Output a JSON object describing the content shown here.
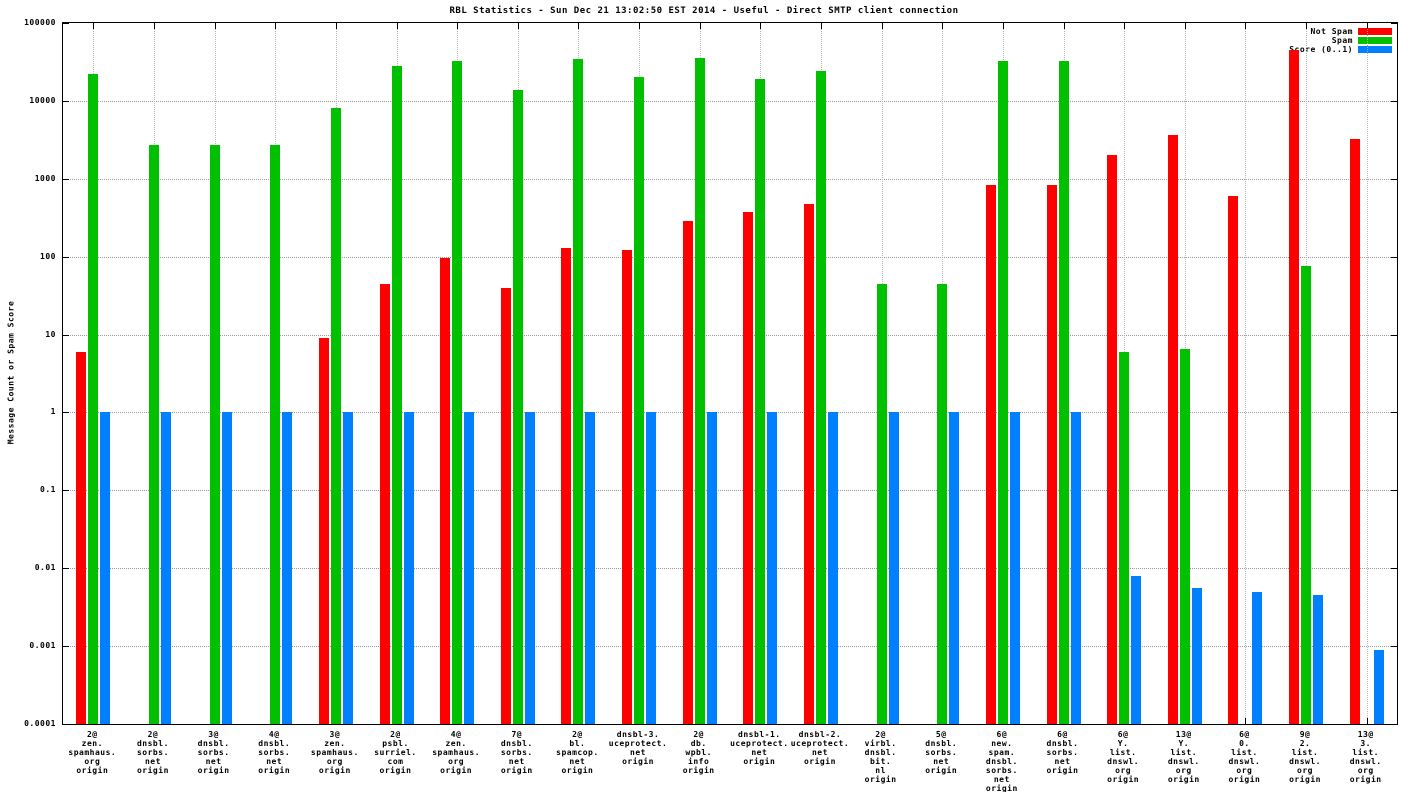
{
  "chart_data": {
    "type": "bar",
    "title": "RBL Statistics - Sun Dec 21 13:02:50 EST 2014 - Useful - Direct SMTP client connection",
    "ylabel": "Message Count or Spam Score",
    "scale": "log",
    "grid": true,
    "legend_position": "top-right",
    "ylim": [
      0.0001,
      100000
    ],
    "yticks": [
      "100000",
      "10000",
      "1000",
      "100",
      "10",
      "1",
      "0.1",
      "0.01",
      "0.001",
      "0.0001"
    ],
    "categories": [
      [
        "2@",
        "zen.",
        "spamhaus.",
        "org",
        "origin"
      ],
      [
        "2@",
        "dnsbl.",
        "sorbs.",
        "net",
        "origin"
      ],
      [
        "3@",
        "dnsbl.",
        "sorbs.",
        "net",
        "origin"
      ],
      [
        "4@",
        "dnsbl.",
        "sorbs.",
        "net",
        "origin"
      ],
      [
        "3@",
        "zen.",
        "spamhaus.",
        "org",
        "origin"
      ],
      [
        "2@",
        "psbl.",
        "surriel.",
        "com",
        "origin"
      ],
      [
        "4@",
        "zen.",
        "spamhaus.",
        "org",
        "origin"
      ],
      [
        "7@",
        "dnsbl.",
        "sorbs.",
        "net",
        "origin"
      ],
      [
        "2@",
        "bl.",
        "spamcop.",
        "net",
        "origin"
      ],
      [
        "dnsbl-3.",
        "uceprotect.",
        "net",
        "origin"
      ],
      [
        "2@",
        "db.",
        "wpbl.",
        "info",
        "origin"
      ],
      [
        "dnsbl-1.",
        "uceprotect.",
        "net",
        "origin"
      ],
      [
        "dnsbl-2.",
        "uceprotect.",
        "net",
        "origin"
      ],
      [
        "2@",
        "virbl.",
        "dnsbl.",
        "bit.",
        "nl",
        "origin"
      ],
      [
        "5@",
        "dnsbl.",
        "sorbs.",
        "net",
        "origin"
      ],
      [
        "6@",
        "new.",
        "spam.",
        "dnsbl.",
        "sorbs.",
        "net",
        "origin"
      ],
      [
        "6@",
        "dnsbl.",
        "sorbs.",
        "net",
        "origin"
      ],
      [
        "6@",
        "Y.",
        "list.",
        "dnswl.",
        "org",
        "origin"
      ],
      [
        "13@",
        "Y.",
        "list.",
        "dnswl.",
        "org",
        "origin"
      ],
      [
        "6@",
        "0.",
        "list.",
        "dnswl.",
        "org",
        "origin"
      ],
      [
        "9@",
        "2.",
        "list.",
        "dnswl.",
        "org",
        "origin"
      ],
      [
        "13@",
        "3.",
        "list.",
        "dnswl.",
        "org",
        "origin"
      ]
    ],
    "series": [
      {
        "name": "Not Spam",
        "color": "#ff0000",
        "values": [
          6,
          null,
          null,
          null,
          9,
          45,
          95,
          40,
          130,
          120,
          290,
          380,
          480,
          null,
          null,
          820,
          820,
          2000,
          3600,
          600,
          45000,
          3200
        ]
      },
      {
        "name": "Spam",
        "color": "#00c000",
        "values": [
          22000,
          2700,
          2700,
          2700,
          8000,
          28000,
          33000,
          14000,
          35000,
          20000,
          36000,
          19000,
          24000,
          45,
          45,
          33000,
          33000,
          6,
          6.5,
          null,
          75,
          null
        ]
      },
      {
        "name": "Score (0..1)",
        "color": "#0080ff",
        "values": [
          1,
          1,
          1,
          1,
          1,
          1,
          1,
          1,
          1,
          1,
          1,
          1,
          1,
          1,
          1,
          1,
          1,
          0.008,
          0.0055,
          0.005,
          0.0045,
          0.0009
        ]
      }
    ]
  }
}
